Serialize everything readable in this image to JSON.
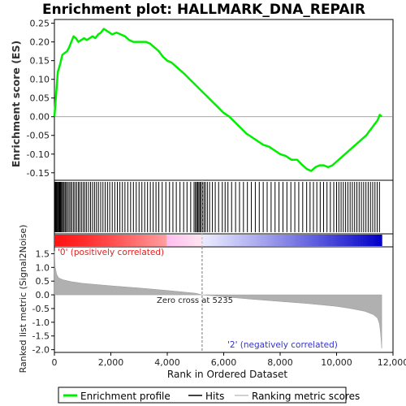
{
  "chart_data": {
    "type": "line",
    "title": "Enrichment plot: HALLMARK_DNA_REPAIR",
    "es_ylabel": "Enrichment score (ES)",
    "metric_ylabel": "Ranked list metric (Signal2Noise)",
    "xlabel": "Rank in Ordered Dataset",
    "xlim": [
      0,
      12000
    ],
    "x_ticks": [
      0,
      2000,
      4000,
      6000,
      8000,
      10000,
      12000
    ],
    "x_tick_labels": [
      "0",
      "2,000",
      "4,000",
      "6,000",
      "8,000",
      "10,000",
      "12,000"
    ],
    "es_ylim": [
      -0.17,
      0.26
    ],
    "es_ticks": [
      0.25,
      0.2,
      0.15,
      0.1,
      0.05,
      0.0,
      -0.05,
      -0.1,
      -0.15
    ],
    "es_tick_labels": [
      "0.25",
      "0.20",
      "0.15",
      "0.10",
      "0.05",
      "0.00",
      "-0.05",
      "-0.10",
      "-0.15"
    ],
    "metric_ylim": [
      -2.1,
      1.75
    ],
    "metric_ticks": [
      1.5,
      1.0,
      0.5,
      0.0,
      -0.5,
      -1.0,
      -1.5,
      -2.0
    ],
    "metric_tick_labels": [
      "1.5",
      "1.0",
      "0.5",
      "0.0",
      "-0.5",
      "-1.0",
      "-1.5",
      "-2.0"
    ],
    "series": [
      {
        "name": "Enrichment profile",
        "color": "#00ee00",
        "x": [
          0,
          60,
          120,
          200,
          280,
          360,
          450,
          520,
          600,
          680,
          760,
          850,
          950,
          1050,
          1150,
          1250,
          1350,
          1450,
          1550,
          1650,
          1750,
          1850,
          1950,
          2050,
          2200,
          2350,
          2500,
          2650,
          2800,
          2950,
          3100,
          3250,
          3400,
          3550,
          3700,
          3850,
          4000,
          4150,
          4300,
          4450,
          4600,
          4800,
          5000,
          5200,
          5400,
          5600,
          5800,
          6000,
          6200,
          6400,
          6600,
          6800,
          7000,
          7200,
          7400,
          7600,
          7800,
          8000,
          8200,
          8400,
          8600,
          8800,
          8950,
          9100,
          9250,
          9400,
          9550,
          9700,
          9850,
          10000,
          10150,
          10300,
          10450,
          10600,
          10750,
          10900,
          11050,
          11200,
          11350,
          11450,
          11530,
          11600
        ],
        "y": [
          0.0,
          0.06,
          0.12,
          0.14,
          0.165,
          0.17,
          0.175,
          0.185,
          0.2,
          0.215,
          0.21,
          0.2,
          0.205,
          0.21,
          0.205,
          0.21,
          0.215,
          0.21,
          0.22,
          0.225,
          0.235,
          0.23,
          0.225,
          0.22,
          0.225,
          0.22,
          0.215,
          0.205,
          0.2,
          0.2,
          0.2,
          0.2,
          0.195,
          0.185,
          0.175,
          0.16,
          0.15,
          0.145,
          0.135,
          0.125,
          0.115,
          0.1,
          0.085,
          0.07,
          0.055,
          0.04,
          0.025,
          0.01,
          0.0,
          -0.015,
          -0.03,
          -0.045,
          -0.055,
          -0.065,
          -0.075,
          -0.08,
          -0.09,
          -0.1,
          -0.105,
          -0.115,
          -0.115,
          -0.13,
          -0.14,
          -0.145,
          -0.135,
          -0.13,
          -0.13,
          -0.135,
          -0.13,
          -0.12,
          -0.11,
          -0.1,
          -0.09,
          -0.08,
          -0.07,
          -0.06,
          -0.05,
          -0.035,
          -0.02,
          -0.01,
          0.005,
          0.0
        ]
      }
    ],
    "hits": [
      20,
      45,
      70,
      95,
      120,
      150,
      175,
      200,
      230,
      260,
      300,
      340,
      380,
      420,
      470,
      520,
      570,
      620,
      680,
      730,
      790,
      850,
      900,
      960,
      1020,
      1080,
      1140,
      1210,
      1280,
      1350,
      1420,
      1490,
      1560,
      1640,
      1720,
      1800,
      1880,
      1960,
      2050,
      2140,
      2230,
      2320,
      2410,
      2500,
      2600,
      2700,
      2800,
      2900,
      3000,
      3100,
      3200,
      3300,
      3400,
      3500,
      3600,
      3700,
      3820,
      3950,
      4080,
      4200,
      4320,
      4450,
      4580,
      4700,
      4830,
      4950,
      5000,
      5040,
      5080,
      5120,
      5160,
      5200,
      5250,
      5300,
      5350,
      5420,
      5500,
      5600,
      5700,
      5820,
      5950,
      6050,
      6150,
      6280,
      6420,
      6560,
      6700,
      6840,
      6980,
      7120,
      7260,
      7400,
      7540,
      7680,
      7820,
      7960,
      8100,
      8240,
      8380,
      8520,
      8660,
      8800,
      8940,
      9060,
      9180,
      9300,
      9420,
      9540,
      9660,
      9780,
      9900,
      10000,
      10080,
      10160,
      10240,
      10320,
      10400,
      10480,
      10560,
      10640,
      10720,
      10800,
      10880,
      10960,
      11040,
      11120,
      11200,
      11280,
      11360,
      11440,
      11520
    ],
    "metric_profile": {
      "x": [
        0,
        30,
        80,
        150,
        300,
        600,
        1000,
        2000,
        3000,
        4000,
        5000,
        5235,
        6000,
        7000,
        8000,
        9000,
        10000,
        10500,
        11000,
        11300,
        11450,
        11520,
        11560,
        11600
      ],
      "y": [
        1.6,
        1.0,
        0.75,
        0.62,
        0.55,
        0.48,
        0.42,
        0.33,
        0.25,
        0.16,
        0.06,
        0.0,
        -0.07,
        -0.16,
        -0.24,
        -0.32,
        -0.42,
        -0.5,
        -0.6,
        -0.72,
        -0.85,
        -1.05,
        -1.4,
        -1.95
      ]
    },
    "zero_cross_label": "Zero cross at 5235",
    "zero_cross_x": 5235,
    "pos_label": "'0' (positively correlated)",
    "neg_label": "'2' (negatively correlated)",
    "legend": [
      "Enrichment profile",
      "Hits",
      "Ranking metric scores"
    ],
    "colors": {
      "es_line": "#00ee00",
      "hit_line": "#000000",
      "metric_fill": "#b0b0b0",
      "pos_red": "#ff0000",
      "mid_white": "#ffffff",
      "neg_blue": "#0000cc"
    }
  }
}
